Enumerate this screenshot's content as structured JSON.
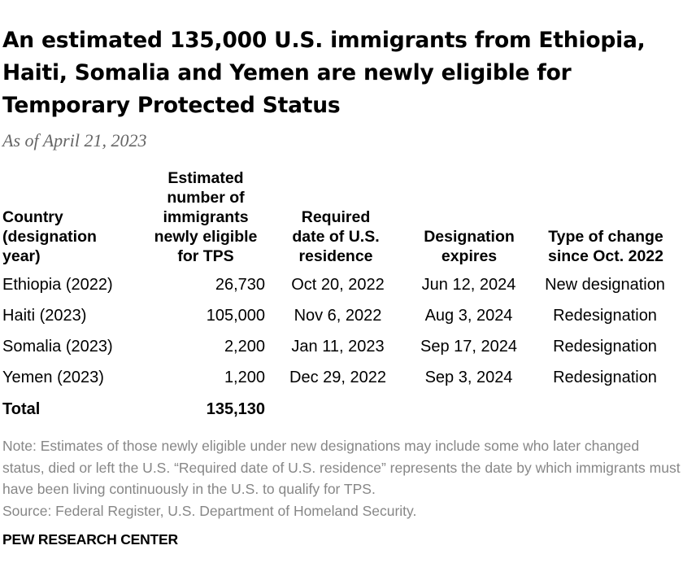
{
  "title": "An estimated 135,000 U.S. immigrants from Ethiopia, Haiti, Somalia and Yemen are newly eligible for Temporary Protected Status",
  "subtitle": "As of April 21, 2023",
  "columns": {
    "country": [
      "Country",
      "(designation",
      "year)"
    ],
    "estimated": [
      "Estimated",
      "number of",
      "immigrants",
      "newly eligible",
      "for TPS"
    ],
    "required": [
      "Required",
      "date of U.S.",
      "residence"
    ],
    "expires": [
      "Designation",
      "expires"
    ],
    "change": [
      "Type of change",
      "since Oct. 2022"
    ]
  },
  "rows": [
    {
      "country": "Ethiopia (2022)",
      "estimated": "26,730",
      "required": "Oct 20, 2022",
      "expires": "Jun 12, 2024",
      "change": "New designation"
    },
    {
      "country": "Haiti (2023)",
      "estimated": "105,000",
      "required": "Nov 6, 2022",
      "expires": "Aug 3, 2024",
      "change": "Redesignation"
    },
    {
      "country": "Somalia (2023)",
      "estimated": "2,200",
      "required": "Jan 11, 2023",
      "expires": "Sep 17, 2024",
      "change": "Redesignation"
    },
    {
      "country": "Yemen (2023)",
      "estimated": "1,200",
      "required": "Dec 29, 2022",
      "expires": "Sep 3, 2024",
      "change": "Redesignation"
    }
  ],
  "total": {
    "label": "Total",
    "value": "135,130"
  },
  "note": "Note: Estimates of those newly eligible under new designations may include some who later changed status, died or left the U.S. “Required date of U.S. residence” represents the date by which immigrants must have been living continuously in the U.S. to qualify for TPS.",
  "source": "Source: Federal Register, U.S. Department of Homeland Security.",
  "brand": "PEW RESEARCH CENTER",
  "chart_data": {
    "type": "table",
    "title": "An estimated 135,000 U.S. immigrants from Ethiopia, Haiti, Somalia and Yemen are newly eligible for Temporary Protected Status",
    "subtitle": "As of April 21, 2023",
    "columns": [
      "Country (designation year)",
      "Estimated number of immigrants newly eligible for TPS",
      "Required date of U.S. residence",
      "Designation expires",
      "Type of change since Oct. 2022"
    ],
    "rows": [
      [
        "Ethiopia (2022)",
        26730,
        "Oct 20, 2022",
        "Jun 12, 2024",
        "New designation"
      ],
      [
        "Haiti (2023)",
        105000,
        "Nov 6, 2022",
        "Aug 3, 2024",
        "Redesignation"
      ],
      [
        "Somalia (2023)",
        2200,
        "Jan 11, 2023",
        "Sep 17, 2024",
        "Redesignation"
      ],
      [
        "Yemen (2023)",
        1200,
        "Dec 29, 2022",
        "Sep 3, 2024",
        "Redesignation"
      ]
    ],
    "total": [
      "Total",
      135130
    ]
  }
}
